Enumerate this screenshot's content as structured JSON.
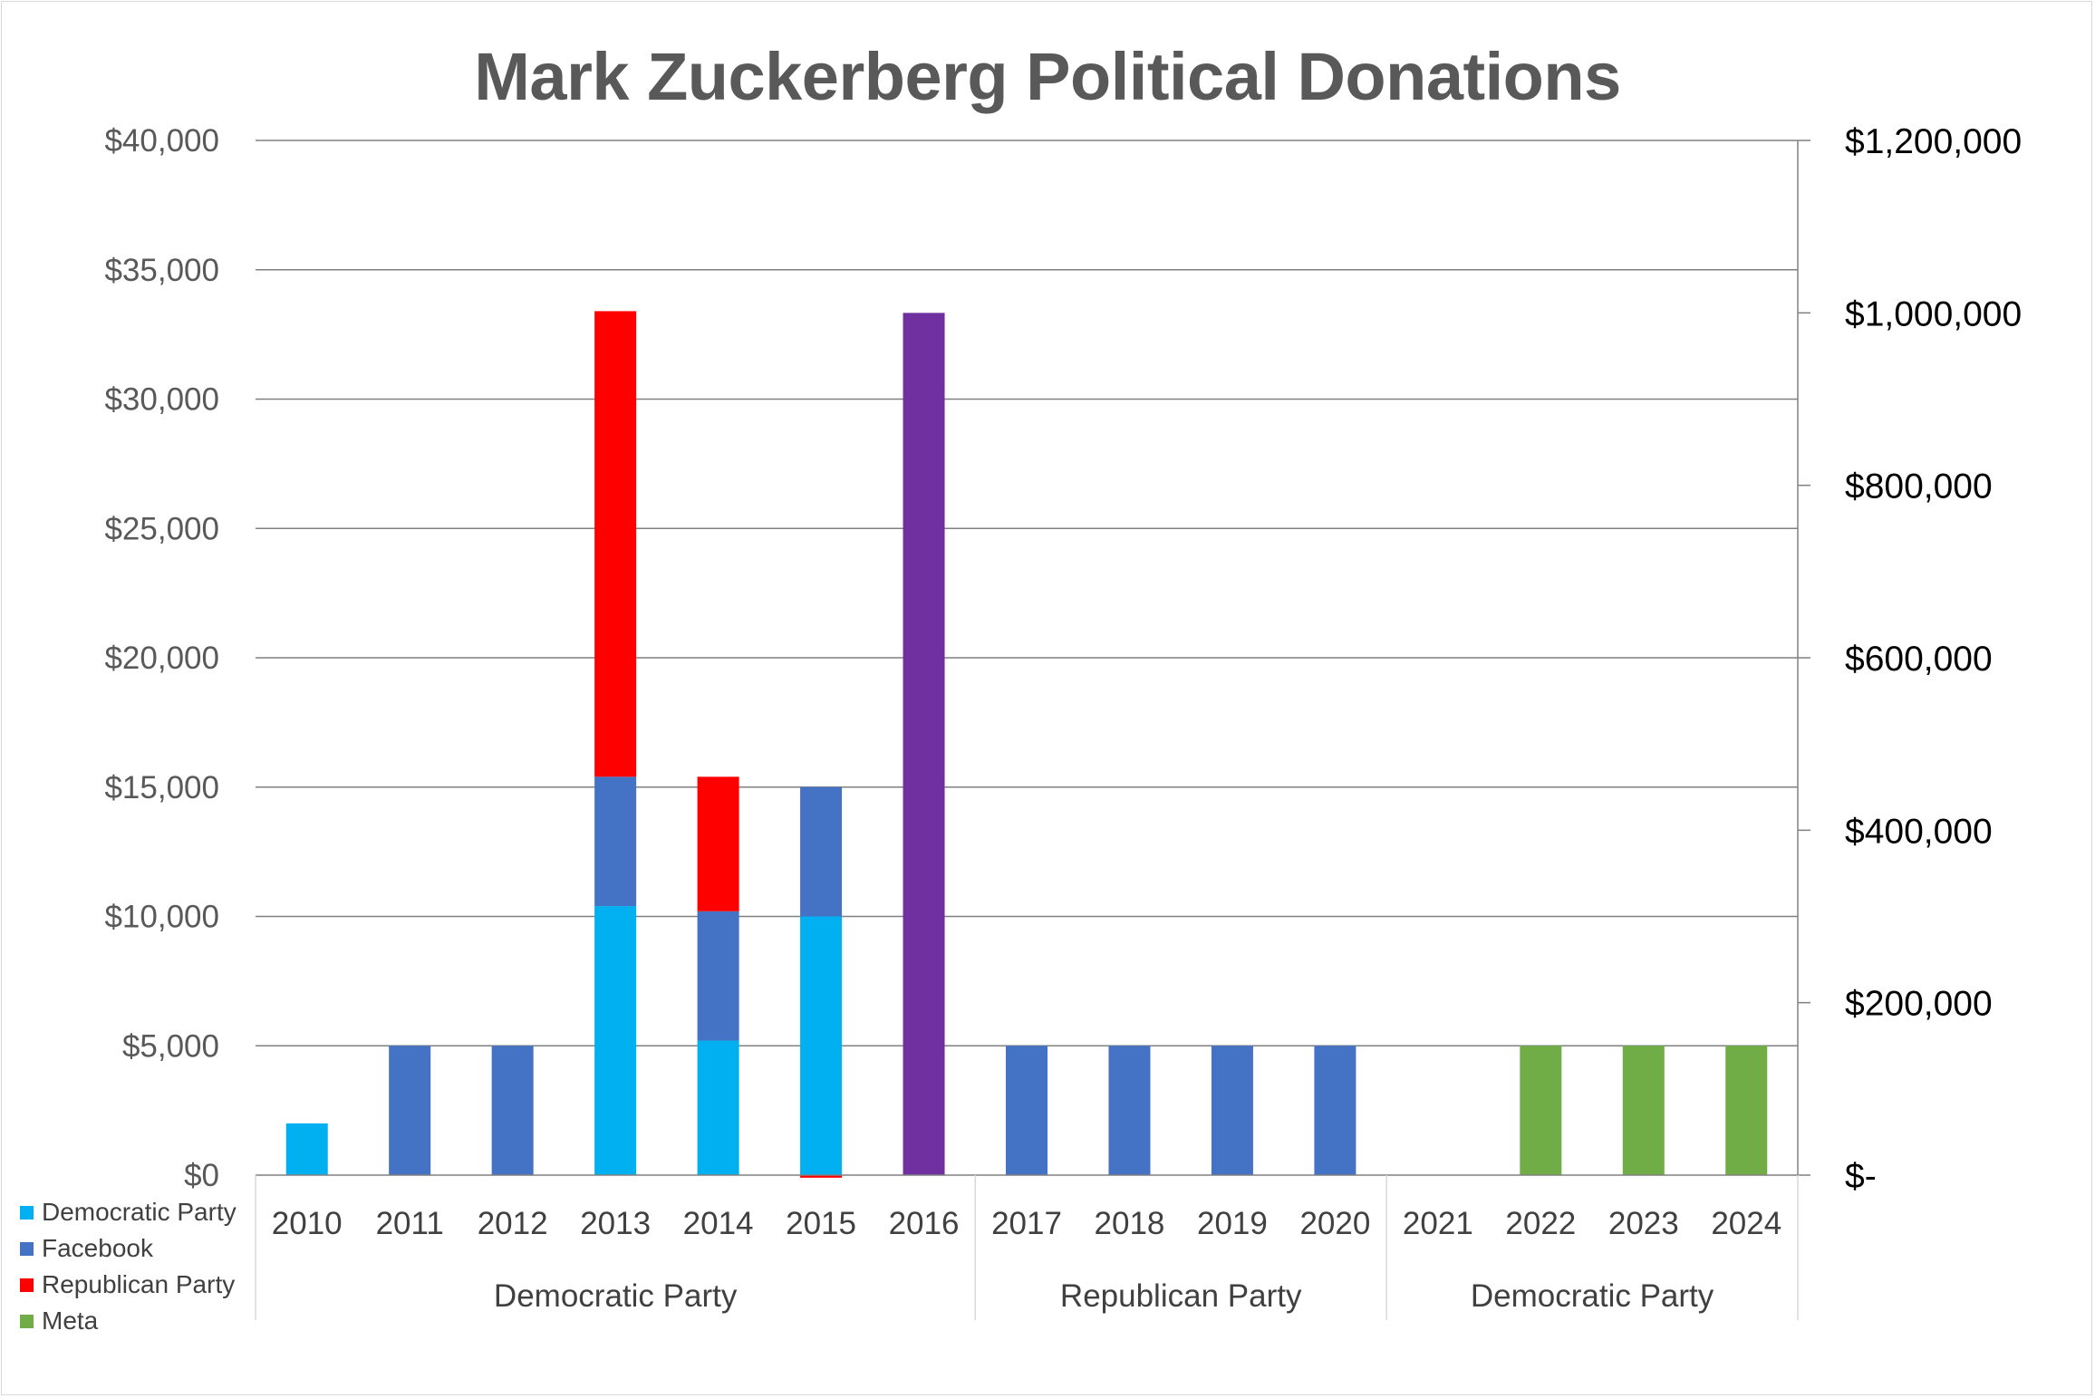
{
  "chart_data": {
    "type": "bar",
    "stacked": true,
    "title": "Mark Zuckerberg Political Donations",
    "categories": [
      "2010",
      "2011",
      "2012",
      "2013",
      "2014",
      "2015",
      "2016",
      "2017",
      "2018",
      "2019",
      "2020",
      "2021",
      "2022",
      "2023",
      "2024"
    ],
    "groups": [
      {
        "label": "Democratic Party",
        "categories": [
          "2010",
          "2011",
          "2012",
          "2013",
          "2014",
          "2015",
          "2016"
        ]
      },
      {
        "label": "Republican Party",
        "categories": [
          "2017",
          "2018",
          "2019",
          "2020"
        ]
      },
      {
        "label": "Democratic Party",
        "categories": [
          "2021",
          "2022",
          "2023",
          "2024"
        ]
      }
    ],
    "series": [
      {
        "name": "Democratic Party",
        "color": "#00b0f0",
        "values": [
          2000,
          0,
          0,
          10400,
          5200,
          10000,
          0,
          0,
          0,
          0,
          0,
          0,
          0,
          0,
          0
        ]
      },
      {
        "name": "Facebook",
        "color": "#4472c4",
        "values": [
          0,
          5000,
          5000,
          5000,
          5000,
          5000,
          0,
          5000,
          5000,
          5000,
          5000,
          0,
          0,
          0,
          0
        ]
      },
      {
        "name": "Republican Party",
        "color": "#ff0000",
        "values": [
          0,
          0,
          0,
          18000,
          5200,
          -100,
          0,
          0,
          0,
          0,
          0,
          0,
          0,
          0,
          0
        ]
      },
      {
        "name": "Meta",
        "color": "#70ad47",
        "values": [
          0,
          0,
          0,
          0,
          0,
          0,
          0,
          0,
          0,
          0,
          0,
          0,
          5000,
          5000,
          5000
        ]
      }
    ],
    "secondary_series": {
      "color": "#7030a0",
      "axis": "right",
      "values": [
        0,
        0,
        0,
        0,
        0,
        0,
        1000000,
        0,
        0,
        0,
        0,
        0,
        0,
        0,
        0
      ]
    },
    "y_left": {
      "ylim": [
        0,
        40000
      ],
      "ticks": [
        0,
        5000,
        10000,
        15000,
        20000,
        25000,
        30000,
        35000,
        40000
      ],
      "tick_labels": [
        "$0",
        "$5,000",
        "$10,000",
        "$15,000",
        "$20,000",
        "$25,000",
        "$30,000",
        "$35,000",
        "$40,000"
      ]
    },
    "y_right": {
      "ylim": [
        0,
        1200000
      ],
      "ticks": [
        0,
        200000,
        400000,
        600000,
        800000,
        1000000,
        1200000
      ],
      "tick_labels": [
        "$-",
        "$200,000",
        "$400,000",
        "$600,000",
        "$800,000",
        "$1,000,000",
        "$1,200,000"
      ]
    },
    "grid": true,
    "legend_position": "bottom-left"
  }
}
